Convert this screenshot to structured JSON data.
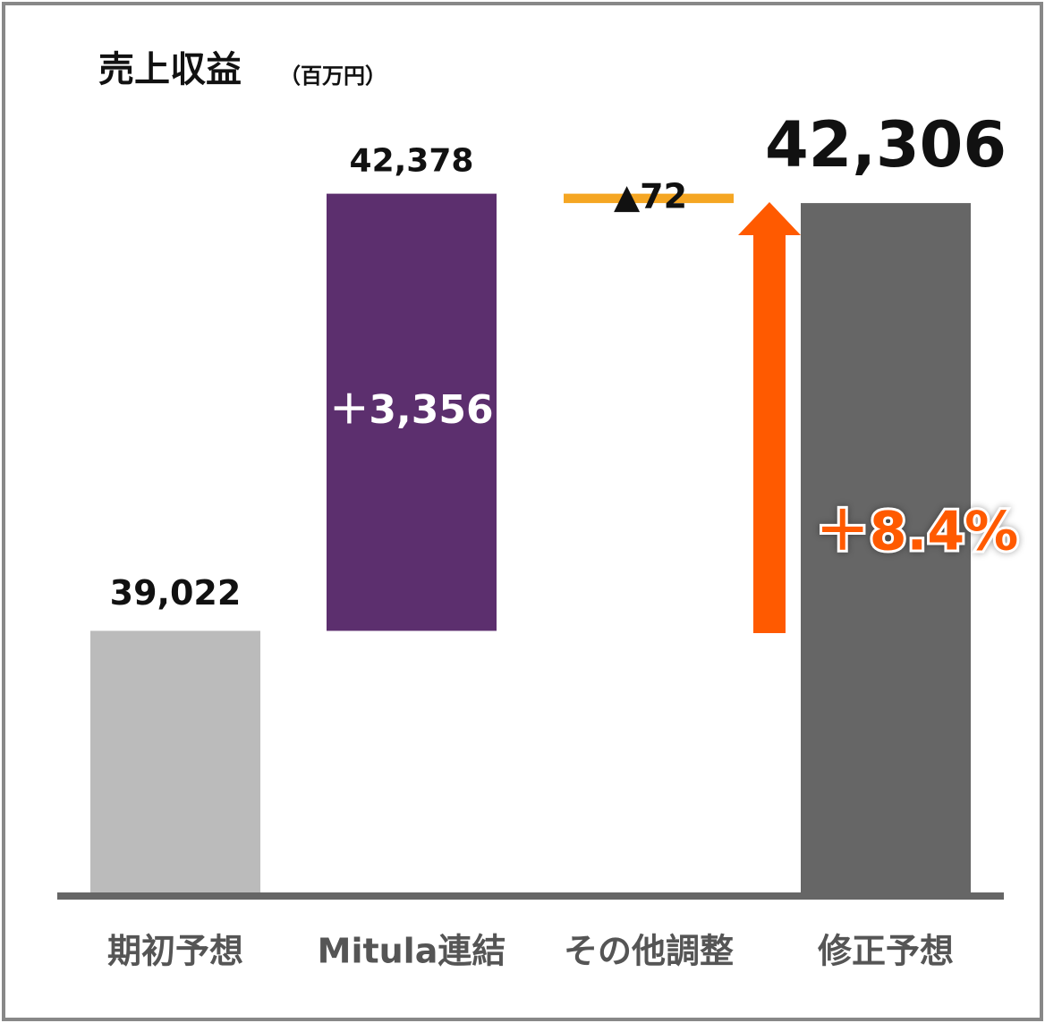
{
  "chart_data": {
    "type": "waterfall",
    "title": "売上収益",
    "unit_label": "（百万円）",
    "categories": [
      "期初予想",
      "Mitula連結",
      "その他調整",
      "修正予想"
    ],
    "measure": [
      "absolute",
      "relative",
      "relative",
      "total"
    ],
    "values": [
      39022,
      3356,
      -72,
      42306
    ],
    "value_labels": [
      "39,022",
      "＋3,356",
      "▲72",
      "42,306"
    ],
    "subtotal_label": "42,378",
    "growth_label": "＋8.4%",
    "colors": [
      "#bbbbbb",
      "#5c2f6e",
      "#f5a623",
      "#666666"
    ],
    "ylim": [
      37000,
      43000
    ]
  }
}
